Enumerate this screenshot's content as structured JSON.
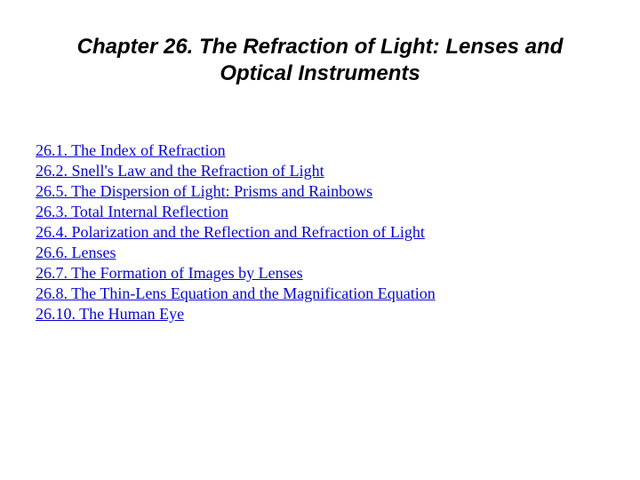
{
  "title": "Chapter 26.  The Refraction of Light: Lenses and Optical Instruments",
  "link_color": "#0000cc",
  "title_color": "#000000",
  "background_color": "#ffffff",
  "title_fontsize": 24,
  "link_fontsize": 18,
  "links": [
    "26.1. The Index of Refraction",
    "26.2. Snell's Law and the Refraction of Light",
    "26.5. The Dispersion of Light: Prisms and Rainbows",
    "26.3. Total Internal Reflection",
    "26.4. Polarization and the Reflection and Refraction of Light",
    "26.6. Lenses",
    "26.7. The Formation of Images by Lenses",
    "26.8. The Thin-Lens Equation and the Magnification Equation",
    "26.10. The Human Eye"
  ]
}
